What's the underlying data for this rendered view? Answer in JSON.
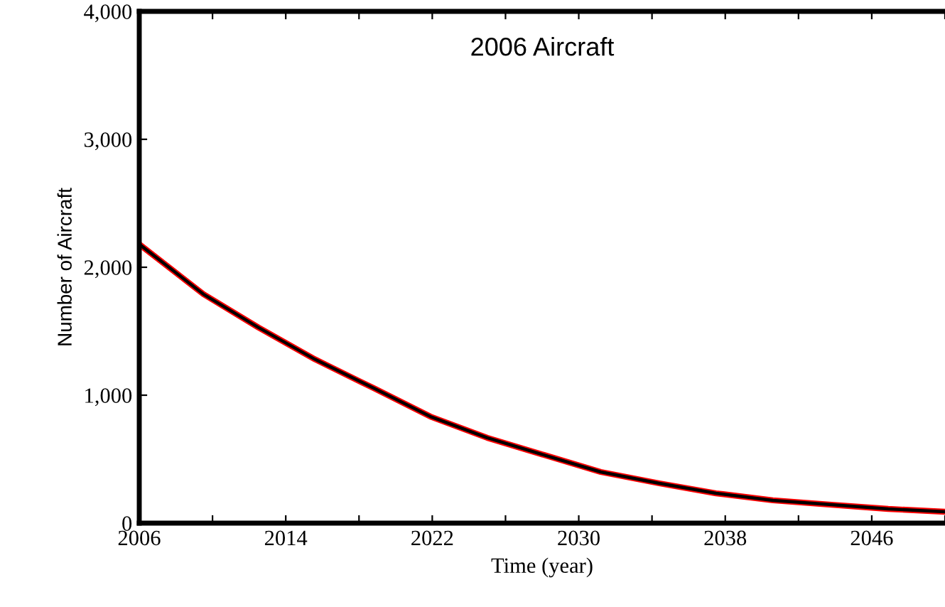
{
  "chart_data": {
    "type": "line",
    "title": "2006 Aircraft",
    "xlabel": "Time (year)",
    "ylabel": "Number of Aircraft",
    "x": [
      2006,
      2009.5,
      2012.5,
      2015.6,
      2018.8,
      2021.9,
      2025,
      2028.1,
      2031.2,
      2034.4,
      2037.5,
      2040.6,
      2043.8,
      2046.9,
      2050
    ],
    "series": [
      {
        "color": "#ff0000",
        "values": [
          2180,
          1790,
          1530,
          1280,
          1055,
          833,
          667,
          533,
          400,
          311,
          233,
          178,
          144,
          111,
          89
        ]
      },
      {
        "color": "#000000",
        "values": [
          2180,
          1790,
          1530,
          1280,
          1055,
          833,
          667,
          533,
          400,
          311,
          233,
          178,
          144,
          111,
          89
        ]
      }
    ],
    "xlim": [
      2006,
      2050
    ],
    "xticks": [
      2006,
      {
        "value": 2010,
        "label": null
      },
      2014,
      {
        "value": 2018,
        "label": null
      },
      2022,
      {
        "value": 2026,
        "label": null
      },
      2030,
      {
        "value": 2034,
        "label": null
      },
      2038,
      {
        "value": 2042,
        "label": null
      },
      2046,
      {
        "value": 2050,
        "label": null
      }
    ],
    "ylim": [
      0,
      4000
    ],
    "yticks": [
      {
        "value": 0,
        "label": "0"
      },
      {
        "value": 1000,
        "label": "1,000"
      },
      {
        "value": 2000,
        "label": "2,000"
      },
      {
        "value": 3000,
        "label": "3,000"
      },
      {
        "value": 4000,
        "label": "4,000"
      }
    ],
    "grid": false,
    "legend": false,
    "line_style": "solid"
  }
}
